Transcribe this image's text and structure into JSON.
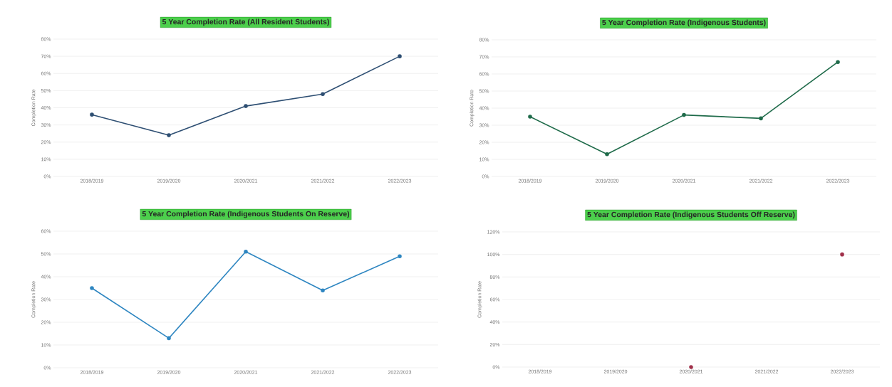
{
  "chart_data": [
    {
      "type": "line",
      "title": "5 Year Completion Rate (All Resident Students)",
      "ylabel": "Completion Rate",
      "categories": [
        "2018/2019",
        "2019/2020",
        "2020/2021",
        "2021/2022",
        "2022/2023"
      ],
      "series": [
        {
          "color": "#2e4f73",
          "values": [
            36,
            24,
            41,
            48,
            70
          ]
        }
      ],
      "ylim": [
        0,
        80
      ],
      "yticks": [
        {
          "value": 0,
          "label": "0%"
        },
        {
          "value": 10,
          "label": "10%"
        },
        {
          "value": 20,
          "label": "20%"
        },
        {
          "value": 30,
          "label": "30%"
        },
        {
          "value": 40,
          "label": "40%"
        },
        {
          "value": 50,
          "label": "50%"
        },
        {
          "value": 60,
          "label": "60%"
        },
        {
          "value": 70,
          "label": "70%"
        },
        {
          "value": 80,
          "label": "80%"
        }
      ],
      "grid": "y",
      "marker": "circle",
      "line_style": "solid"
    },
    {
      "type": "line",
      "title": "5 Year Completion Rate (Indigenous Students)",
      "ylabel": "Completion Rate",
      "categories": [
        "2018/2019",
        "2019/2020",
        "2020/2021",
        "2021/2022",
        "2022/2023"
      ],
      "series": [
        {
          "color": "#1f6b4a",
          "values": [
            35,
            13,
            36,
            34,
            67
          ]
        }
      ],
      "ylim": [
        0,
        80
      ],
      "yticks": [
        {
          "value": 0,
          "label": "0%"
        },
        {
          "value": 10,
          "label": "10%"
        },
        {
          "value": 20,
          "label": "20%"
        },
        {
          "value": 30,
          "label": "30%"
        },
        {
          "value": 40,
          "label": "40%"
        },
        {
          "value": 50,
          "label": "50%"
        },
        {
          "value": 60,
          "label": "60%"
        },
        {
          "value": 70,
          "label": "70%"
        },
        {
          "value": 80,
          "label": "80%"
        }
      ],
      "grid": "y",
      "marker": "circle",
      "line_style": "solid"
    },
    {
      "type": "line",
      "title": "5 Year Completion Rate (Indigenous Students On Reserve)",
      "ylabel": "Completion Rate",
      "categories": [
        "2018/2019",
        "2019/2020",
        "2020/2021",
        "2021/2022",
        "2022/2023"
      ],
      "series": [
        {
          "color": "#2e86c1",
          "values": [
            35,
            13,
            51,
            34,
            49
          ]
        }
      ],
      "ylim": [
        0,
        60
      ],
      "yticks": [
        {
          "value": 0,
          "label": "0%"
        },
        {
          "value": 10,
          "label": "10%"
        },
        {
          "value": 20,
          "label": "20%"
        },
        {
          "value": 30,
          "label": "30%"
        },
        {
          "value": 40,
          "label": "40%"
        },
        {
          "value": 50,
          "label": "50%"
        },
        {
          "value": 60,
          "label": "60%"
        }
      ],
      "grid": "y",
      "marker": "circle",
      "line_style": "solid"
    },
    {
      "type": "scatter",
      "title": "5 Year Completion Rate (Indigenous Students Off Reserve)",
      "ylabel": "Completion Rate",
      "categories": [
        "2018/2019",
        "2019/2020",
        "2020/2021",
        "2021/2022",
        "2022/2023"
      ],
      "series": [
        {
          "color": "#a0304a",
          "values": [
            null,
            null,
            0,
            null,
            100
          ]
        }
      ],
      "ylim": [
        0,
        120
      ],
      "yticks": [
        {
          "value": 0,
          "label": "0%"
        },
        {
          "value": 20,
          "label": "20%"
        },
        {
          "value": 40,
          "label": "40%"
        },
        {
          "value": 60,
          "label": "60%"
        },
        {
          "value": 80,
          "label": "80%"
        },
        {
          "value": 100,
          "label": "100%"
        },
        {
          "value": 120,
          "label": "120%"
        }
      ],
      "grid": "y",
      "marker": "circle"
    }
  ]
}
